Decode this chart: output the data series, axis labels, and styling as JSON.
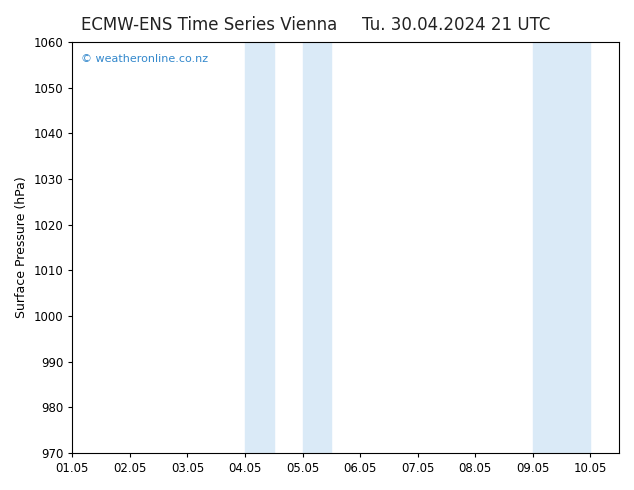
{
  "title_left": "ECMW-ENS Time Series Vienna",
  "title_right": "Tu. 30.04.2024 21 UTC",
  "ylabel": "Surface Pressure (hPa)",
  "ylim": [
    970,
    1060
  ],
  "yticks": [
    970,
    980,
    990,
    1000,
    1010,
    1020,
    1030,
    1040,
    1050,
    1060
  ],
  "xtick_positions": [
    1,
    2,
    3,
    4,
    5,
    6,
    7,
    8,
    9,
    10
  ],
  "xtick_labels": [
    "01.05",
    "02.05",
    "03.05",
    "04.05",
    "05.05",
    "06.05",
    "07.05",
    "08.05",
    "09.05",
    "10.05"
  ],
  "x_min": 1.0,
  "x_max": 10.5,
  "shaded_regions": [
    {
      "xstart": 4.0,
      "xend": 4.5
    },
    {
      "xstart": 5.0,
      "xend": 5.5
    },
    {
      "xstart": 9.0,
      "xend": 9.5
    },
    {
      "xstart": 9.5,
      "xend": 10.0
    }
  ],
  "shade_color": "#daeaf7",
  "background_color": "#ffffff",
  "watermark_text": "© weatheronline.co.nz",
  "watermark_color": "#3388cc",
  "title_fontsize": 12,
  "axis_label_fontsize": 9,
  "tick_fontsize": 8.5
}
